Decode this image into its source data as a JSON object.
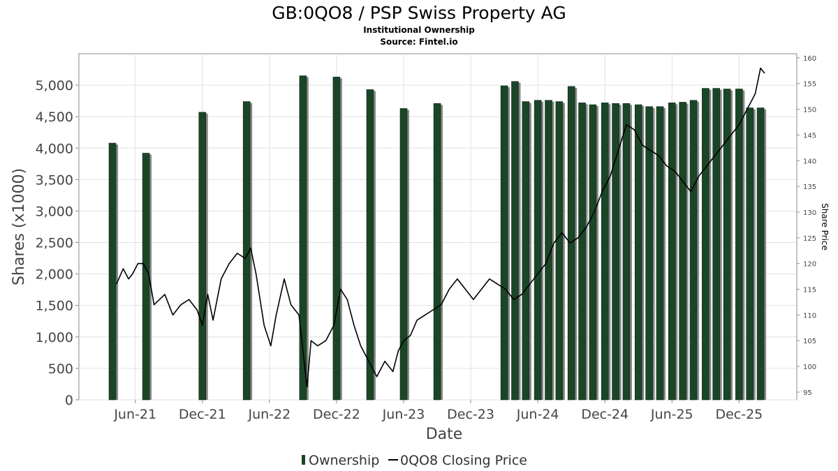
{
  "chart_data": {
    "type": "bar+line",
    "title": "GB:0QO8 / PSP Swiss Property AG",
    "subtitle_lines": [
      "Institutional Ownership",
      "Source: Fintel.io"
    ],
    "xlabel": "Date",
    "ylabel": "Shares (x1000)",
    "y2label": "Share Price",
    "ylim": [
      0,
      5500
    ],
    "y2lim": [
      93.5,
      160.8
    ],
    "yticks": [
      0,
      500,
      1000,
      1500,
      2000,
      2500,
      3000,
      3500,
      4000,
      4500,
      5000
    ],
    "ytick_labels": [
      "0",
      "500",
      "1,000",
      "1,500",
      "2,000",
      "2,500",
      "3,000",
      "3,500",
      "4,000",
      "4,500",
      "5,000"
    ],
    "y2ticks": [
      95,
      100,
      105,
      110,
      115,
      120,
      125,
      130,
      135,
      140,
      145,
      150,
      155,
      160
    ],
    "xlim": [
      2021.0,
      2026.35
    ],
    "xticks": [
      {
        "label": "Jun-21",
        "x": 2021.42
      },
      {
        "label": "Dec-21",
        "x": 2021.92
      },
      {
        "label": "Jun-22",
        "x": 2022.42
      },
      {
        "label": "Dec-22",
        "x": 2022.92
      },
      {
        "label": "Jun-23",
        "x": 2023.42
      },
      {
        "label": "Dec-23",
        "x": 2023.92
      },
      {
        "label": "Jun-24",
        "x": 2024.42
      },
      {
        "label": "Dec-24",
        "x": 2024.92
      },
      {
        "label": "Jun-25",
        "x": 2025.42
      },
      {
        "label": "Dec-25",
        "x": 2025.92
      }
    ],
    "grid": true,
    "legend_position": "bottom-center",
    "series": [
      {
        "name": "Ownership",
        "type": "bar",
        "axis": "left",
        "color": "#1b4527",
        "x": [
          2021.25,
          2021.5,
          2021.92,
          2022.25,
          2022.67,
          2022.92,
          2023.17,
          2023.42,
          2023.67,
          2024.17,
          2024.25,
          2024.33,
          2024.42,
          2024.5,
          2024.58,
          2024.67,
          2024.75,
          2024.83,
          2024.92,
          2025.0,
          2025.08,
          2025.17,
          2025.25,
          2025.33,
          2025.42,
          2025.5,
          2025.58,
          2025.67,
          2025.75,
          2025.83,
          2025.92,
          2026.0,
          2026.08
        ],
        "values": [
          4080,
          3920,
          4570,
          4740,
          5150,
          5130,
          4930,
          4630,
          4710,
          4990,
          5060,
          4740,
          4760,
          4760,
          4740,
          4980,
          4720,
          4690,
          4720,
          4710,
          4710,
          4690,
          4660,
          4660,
          4720,
          4730,
          4760,
          4950,
          4950,
          4940,
          4940,
          4640,
          4640
        ]
      },
      {
        "name": "0QO8 Closing Price",
        "type": "line",
        "axis": "right",
        "color": "#000000",
        "x": [
          2021.28,
          2021.33,
          2021.37,
          2021.4,
          2021.44,
          2021.48,
          2021.52,
          2021.56,
          2021.6,
          2021.64,
          2021.7,
          2021.76,
          2021.82,
          2021.88,
          2021.92,
          2021.96,
          2022.0,
          2022.06,
          2022.12,
          2022.18,
          2022.24,
          2022.28,
          2022.32,
          2022.38,
          2022.43,
          2022.47,
          2022.53,
          2022.58,
          2022.64,
          2022.7,
          2022.73,
          2022.78,
          2022.84,
          2022.9,
          2022.95,
          2023.0,
          2023.05,
          2023.1,
          2023.16,
          2023.22,
          2023.28,
          2023.34,
          2023.38,
          2023.42,
          2023.47,
          2023.52,
          2023.58,
          2023.64,
          2023.7,
          2023.76,
          2023.82,
          2023.88,
          2023.94,
          2024.0,
          2024.06,
          2024.12,
          2024.18,
          2024.24,
          2024.3,
          2024.36,
          2024.42,
          2024.48,
          2024.54,
          2024.6,
          2024.66,
          2024.72,
          2024.78,
          2024.84,
          2024.9,
          2024.96,
          2025.02,
          2025.08,
          2025.14,
          2025.2,
          2025.26,
          2025.32,
          2025.38,
          2025.44,
          2025.5,
          2025.56,
          2025.62,
          2025.68,
          2025.74,
          2025.8,
          2025.86,
          2025.92,
          2025.98,
          2026.04,
          2026.08,
          2026.11
        ],
        "values": [
          116,
          119,
          117,
          118,
          120,
          120,
          118,
          112,
          113,
          114,
          110,
          112,
          113,
          111,
          108,
          114,
          109,
          117,
          120,
          122,
          121,
          123,
          118,
          108,
          104,
          110,
          117,
          112,
          110,
          96,
          105,
          104,
          105,
          108,
          115,
          113,
          108,
          104,
          101,
          98,
          101,
          99,
          103,
          105,
          106,
          109,
          110,
          111,
          112,
          115,
          117,
          115,
          113,
          115,
          117,
          116,
          115,
          113,
          114,
          116,
          118,
          120,
          124,
          126,
          124,
          125,
          127,
          130,
          134,
          137,
          142,
          147,
          146,
          143,
          142,
          141,
          139,
          138,
          136,
          134,
          137,
          139,
          141,
          143,
          145,
          147,
          150,
          153,
          158,
          157
        ]
      }
    ]
  }
}
